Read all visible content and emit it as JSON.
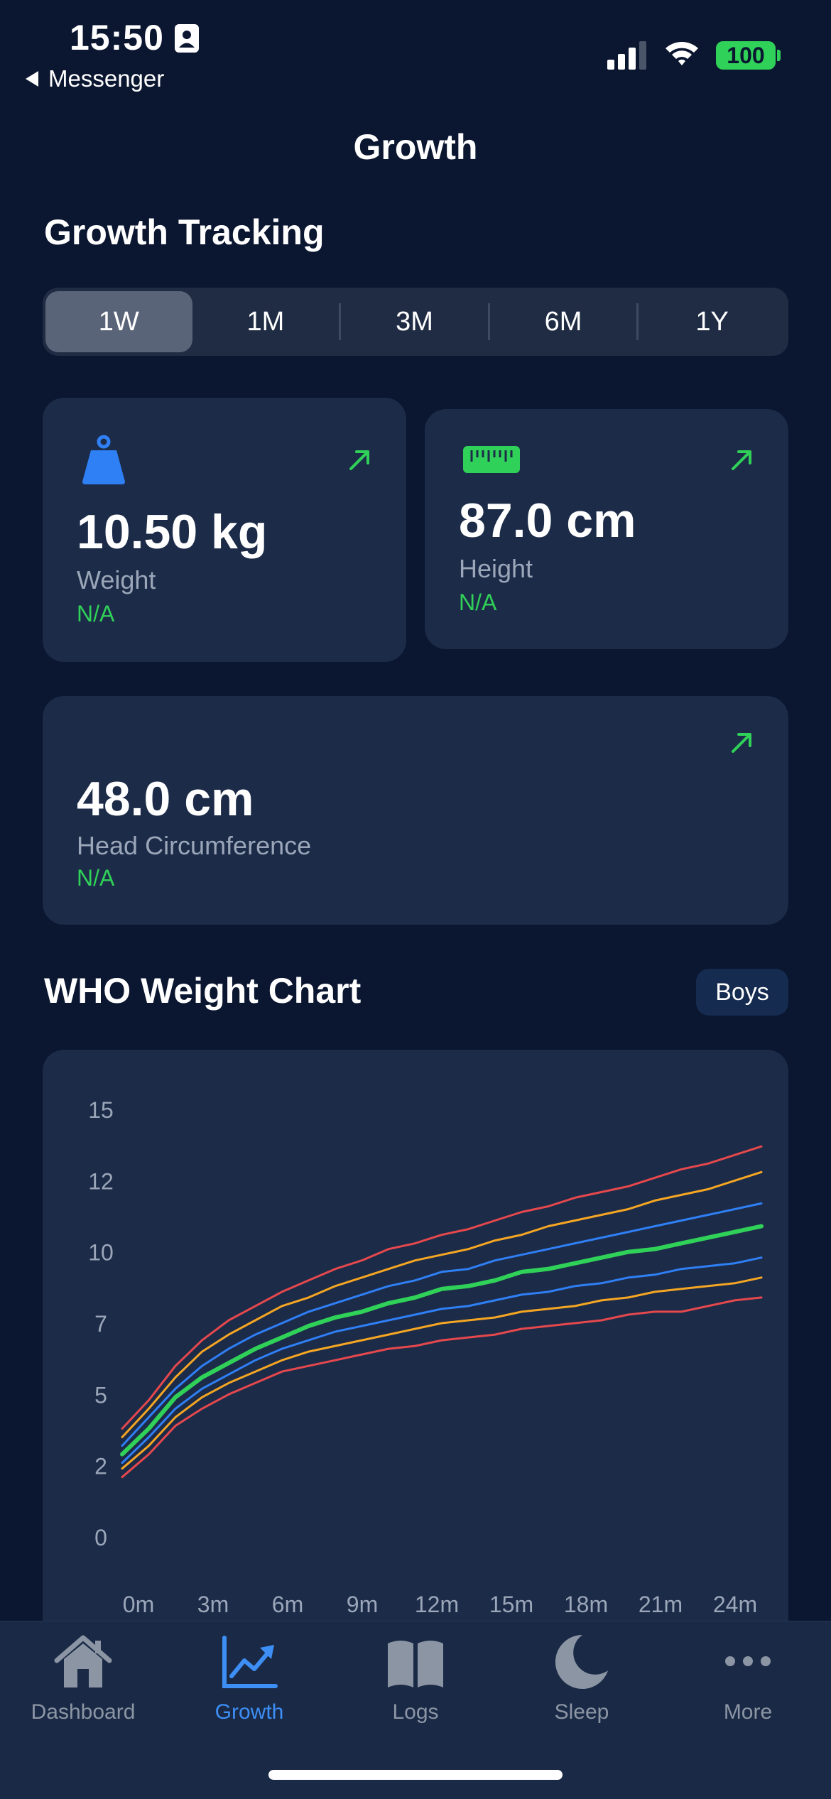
{
  "status_bar": {
    "time": "15:50",
    "back_label": "Messenger",
    "battery": "100"
  },
  "nav": {
    "title": "Growth"
  },
  "growth_tracking": {
    "title": "Growth Tracking",
    "ranges": [
      "1W",
      "1M",
      "3M",
      "6M",
      "1Y"
    ],
    "selected_range": "1W"
  },
  "metrics": {
    "weight": {
      "value": "10.50 kg",
      "label": "Weight",
      "change": "N/A",
      "icon": "weight-icon"
    },
    "height": {
      "value": "87.0 cm",
      "label": "Height",
      "change": "N/A",
      "icon": "ruler-icon"
    },
    "head": {
      "value": "48.0 cm",
      "label": "Head Circumference",
      "change": "N/A"
    }
  },
  "who_chart": {
    "title": "WHO Weight Chart",
    "gender_badge": "Boys"
  },
  "chart_data": {
    "type": "line",
    "title": "WHO Weight Chart",
    "xlabel": "",
    "ylabel": "",
    "x_ticks": [
      "0m",
      "3m",
      "6m",
      "9m",
      "12m",
      "15m",
      "18m",
      "21m",
      "24m"
    ],
    "y_ticks": [
      "15",
      "12",
      "10",
      "7",
      "5",
      "2",
      "0"
    ],
    "x": [
      0,
      1,
      2,
      3,
      4,
      5,
      6,
      7,
      8,
      9,
      10,
      11,
      12,
      13,
      14,
      15,
      16,
      17,
      18,
      19,
      20,
      21,
      22,
      23,
      24
    ],
    "ylim": [
      0,
      15
    ],
    "grid": false,
    "series": [
      {
        "color": "#e5484d",
        "width": 3,
        "values": [
          2.1,
          2.9,
          3.9,
          4.5,
          5.0,
          5.4,
          5.8,
          6.0,
          6.2,
          6.4,
          6.6,
          6.7,
          6.9,
          7.0,
          7.1,
          7.3,
          7.4,
          7.5,
          7.6,
          7.8,
          7.9,
          7.9,
          8.1,
          8.3,
          8.4
        ]
      },
      {
        "color": "#f5a623",
        "width": 3,
        "values": [
          2.4,
          3.2,
          4.2,
          4.9,
          5.4,
          5.8,
          6.2,
          6.5,
          6.7,
          6.9,
          7.1,
          7.3,
          7.5,
          7.6,
          7.7,
          7.9,
          8.0,
          8.1,
          8.3,
          8.4,
          8.6,
          8.7,
          8.8,
          8.9,
          9.1
        ]
      },
      {
        "color": "#2f7ff5",
        "width": 3,
        "values": [
          2.6,
          3.5,
          4.5,
          5.2,
          5.7,
          6.2,
          6.6,
          6.9,
          7.2,
          7.4,
          7.6,
          7.8,
          8.0,
          8.1,
          8.3,
          8.5,
          8.6,
          8.8,
          8.9,
          9.1,
          9.2,
          9.4,
          9.5,
          9.6,
          9.8
        ]
      },
      {
        "color": "#30d158",
        "width": 6,
        "values": [
          2.9,
          3.8,
          4.9,
          5.6,
          6.1,
          6.6,
          7.0,
          7.4,
          7.7,
          7.9,
          8.2,
          8.4,
          8.7,
          8.8,
          9.0,
          9.3,
          9.4,
          9.6,
          9.8,
          10.0,
          10.1,
          10.3,
          10.5,
          10.7,
          10.9
        ]
      },
      {
        "color": "#2f7ff5",
        "width": 3,
        "values": [
          3.2,
          4.2,
          5.2,
          6.0,
          6.6,
          7.1,
          7.5,
          7.9,
          8.2,
          8.5,
          8.8,
          9.0,
          9.3,
          9.4,
          9.7,
          9.9,
          10.1,
          10.3,
          10.5,
          10.7,
          10.9,
          11.1,
          11.3,
          11.5,
          11.7
        ]
      },
      {
        "color": "#f5a623",
        "width": 3,
        "values": [
          3.5,
          4.5,
          5.6,
          6.5,
          7.1,
          7.6,
          8.1,
          8.4,
          8.8,
          9.1,
          9.4,
          9.7,
          9.9,
          10.1,
          10.4,
          10.6,
          10.9,
          11.1,
          11.3,
          11.5,
          11.8,
          12.0,
          12.2,
          12.5,
          12.8
        ]
      },
      {
        "color": "#e5484d",
        "width": 3,
        "values": [
          3.8,
          4.8,
          6.0,
          6.9,
          7.6,
          8.1,
          8.6,
          9.0,
          9.4,
          9.7,
          10.1,
          10.3,
          10.6,
          10.8,
          11.1,
          11.4,
          11.6,
          11.9,
          12.1,
          12.3,
          12.6,
          12.9,
          13.1,
          13.4,
          13.7
        ]
      }
    ]
  },
  "tabbar": {
    "items": [
      {
        "label": "Dashboard",
        "icon": "house-icon",
        "active": false
      },
      {
        "label": "Growth",
        "icon": "chart-icon",
        "active": true
      },
      {
        "label": "Logs",
        "icon": "book-icon",
        "active": false
      },
      {
        "label": "Sleep",
        "icon": "moon-icon",
        "active": false
      },
      {
        "label": "More",
        "icon": "ellipsis-icon",
        "active": false
      }
    ]
  }
}
